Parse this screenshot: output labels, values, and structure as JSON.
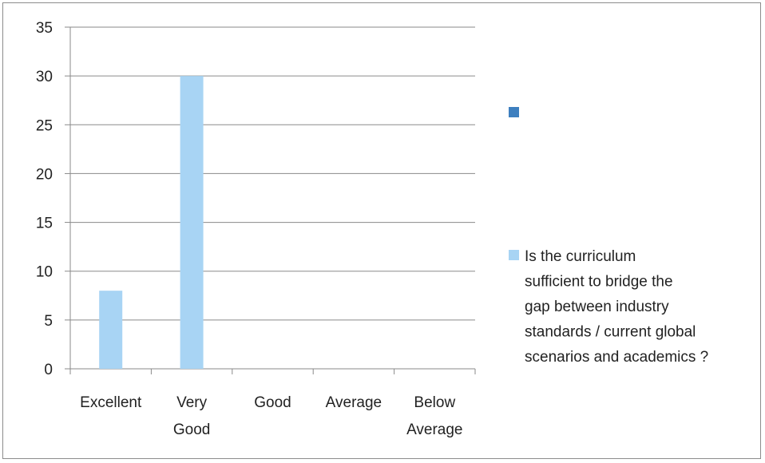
{
  "chart_data": {
    "type": "bar",
    "title": "",
    "xlabel": "",
    "ylabel": "",
    "categories": [
      [
        "Excellent"
      ],
      [
        "Very",
        "Good"
      ],
      [
        "Good"
      ],
      [
        "Average"
      ],
      [
        "Below",
        "Average"
      ]
    ],
    "series": [
      {
        "name": "Is the curriculum sufficient to bridge the gap between industry standards / current global scenarios and academics ?",
        "values": [
          8,
          30,
          0,
          0,
          0
        ],
        "color": "#a8d4f4"
      }
    ],
    "ylim": [
      0,
      35
    ],
    "yticks": [
      0,
      5,
      10,
      15,
      20,
      25,
      30,
      35
    ],
    "grid": true,
    "legend": {
      "placement": "right",
      "empty_marker_color": "#3d7fbf",
      "text_lines": [
        "Is the curriculum",
        "sufficient to bridge the",
        "gap between industry",
        "standards / current global",
        "scenarios and academics ?"
      ]
    }
  }
}
